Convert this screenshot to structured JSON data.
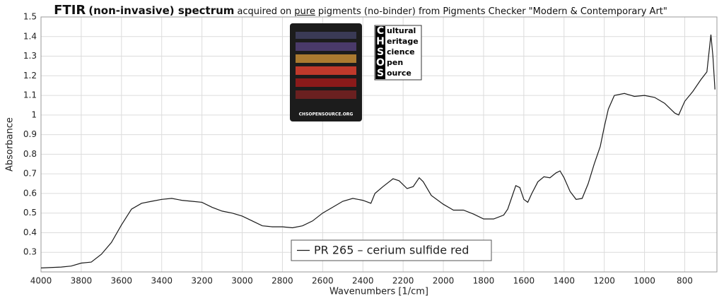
{
  "chart_data": {
    "type": "line",
    "title": [
      "FTIR",
      "(non-invasive) spectrum",
      "acquired on",
      "pure",
      "pigments (no-binder) from Pigments Checker \"Modern & Contemporary Art\""
    ],
    "x_label": "Wavenumbers [1/cm]",
    "y_label": "Absorbance",
    "x": [
      4000,
      3900,
      3850,
      3800,
      3750,
      3700,
      3650,
      3600,
      3550,
      3500,
      3450,
      3400,
      3350,
      3300,
      3250,
      3200,
      3150,
      3100,
      3050,
      3000,
      2950,
      2900,
      2850,
      2800,
      2750,
      2700,
      2650,
      2600,
      2550,
      2500,
      2450,
      2400,
      2360,
      2340,
      2300,
      2250,
      2220,
      2180,
      2150,
      2120,
      2100,
      2060,
      2000,
      1950,
      1900,
      1850,
      1800,
      1750,
      1700,
      1680,
      1660,
      1640,
      1620,
      1600,
      1580,
      1560,
      1530,
      1500,
      1470,
      1440,
      1420,
      1400,
      1370,
      1340,
      1310,
      1280,
      1250,
      1220,
      1200,
      1180,
      1150,
      1100,
      1050,
      1000,
      950,
      900,
      850,
      830,
      800,
      760,
      720,
      690,
      670,
      660,
      650
    ],
    "series": [
      {
        "name": "PR 265 – cerium sulfide red",
        "color": "#1a1a1a",
        "values": [
          0.22,
          0.225,
          0.23,
          0.245,
          0.25,
          0.29,
          0.35,
          0.44,
          0.52,
          0.55,
          0.56,
          0.57,
          0.575,
          0.565,
          0.56,
          0.555,
          0.53,
          0.51,
          0.5,
          0.485,
          0.46,
          0.435,
          0.43,
          0.43,
          0.425,
          0.435,
          0.46,
          0.5,
          0.53,
          0.56,
          0.575,
          0.565,
          0.55,
          0.6,
          0.635,
          0.675,
          0.665,
          0.625,
          0.635,
          0.68,
          0.66,
          0.59,
          0.545,
          0.515,
          0.515,
          0.495,
          0.47,
          0.47,
          0.49,
          0.52,
          0.58,
          0.64,
          0.63,
          0.57,
          0.555,
          0.6,
          0.66,
          0.685,
          0.68,
          0.705,
          0.715,
          0.68,
          0.61,
          0.57,
          0.575,
          0.65,
          0.75,
          0.84,
          0.94,
          1.03,
          1.1,
          1.11,
          1.095,
          1.1,
          1.09,
          1.06,
          1.01,
          1.0,
          1.07,
          1.12,
          1.18,
          1.22,
          1.41,
          1.3,
          1.13
        ]
      }
    ],
    "xlim": [
      4000,
      640
    ],
    "ylim": [
      0.2,
      1.5
    ],
    "xticks": [
      4000,
      3800,
      3600,
      3400,
      3200,
      3000,
      2800,
      2600,
      2400,
      2200,
      2000,
      1800,
      1600,
      1400,
      1200,
      1000,
      800
    ],
    "yticks": [
      0.3,
      0.4,
      0.5,
      0.6,
      0.7,
      0.8,
      0.9,
      1,
      1.1,
      1.2,
      1.3,
      1.4,
      1.5
    ],
    "grid": true,
    "grid_color": "#dcdcdc",
    "legend": "bottom-center"
  },
  "logo": {
    "letters": [
      "C",
      "H",
      "S",
      "O",
      "S"
    ],
    "words": [
      "ultural",
      "eritage",
      "cience",
      "pen",
      "ource"
    ],
    "url": "CHSOPENSOURCE.ORG"
  }
}
